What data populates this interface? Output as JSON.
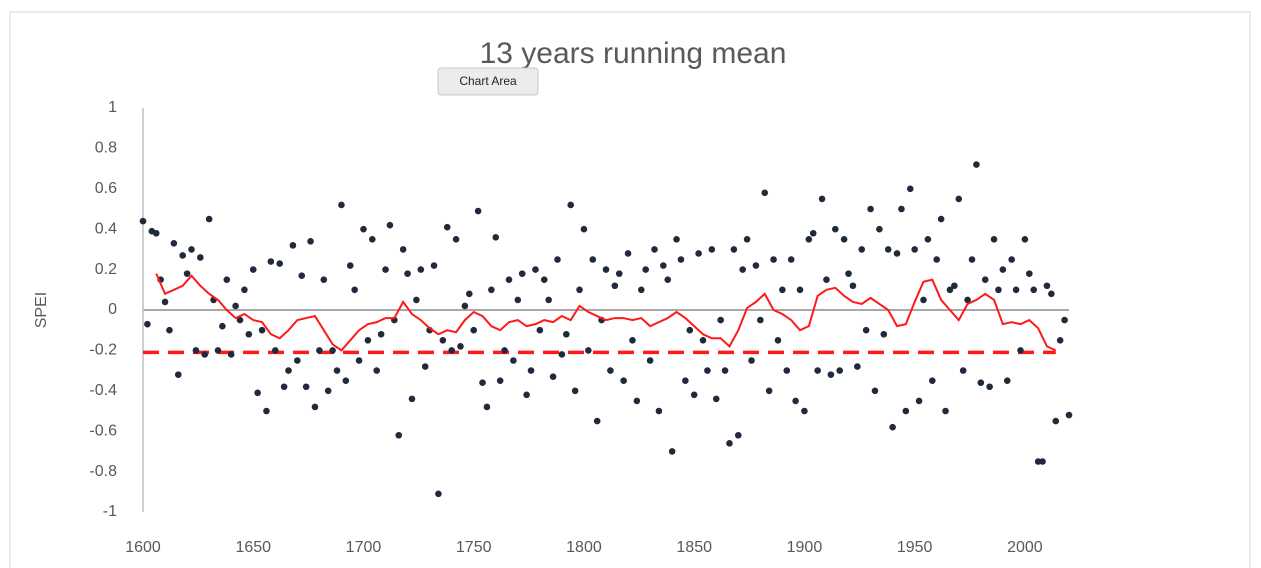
{
  "chart_data": {
    "type": "scatter",
    "title": "13 years running mean",
    "tooltip": "Chart Area",
    "ylabel": "SPEI",
    "xlim": [
      1600,
      2020
    ],
    "ylim": [
      -1,
      1
    ],
    "xticks": [
      1600,
      1650,
      1700,
      1750,
      1800,
      1850,
      1900,
      1950,
      2000
    ],
    "yticks": [
      1,
      0.8,
      0.6,
      0.4,
      0.2,
      0,
      -0.2,
      -0.4,
      -0.6,
      -0.8,
      -1
    ],
    "series": [
      {
        "color": "#1f2a3a",
        "x": [
          1600,
          1602,
          1604,
          1606,
          1608,
          1610,
          1612,
          1614,
          1616,
          1618,
          1620,
          1622,
          1624,
          1626,
          1628,
          1630,
          1632,
          1634,
          1636,
          1638,
          1640,
          1642,
          1644,
          1646,
          1648,
          1650,
          1652,
          1654,
          1656,
          1658,
          1660,
          1662,
          1664,
          1666,
          1668,
          1670,
          1672,
          1674,
          1676,
          1678,
          1680,
          1682,
          1684,
          1686,
          1688,
          1690,
          1692,
          1694,
          1696,
          1698,
          1700,
          1702,
          1704,
          1706,
          1708,
          1710,
          1712,
          1714,
          1716,
          1718,
          1720,
          1722,
          1724,
          1726,
          1728,
          1730,
          1732,
          1734,
          1736,
          1738,
          1740,
          1742,
          1744,
          1746,
          1748,
          1750,
          1752,
          1754,
          1756,
          1758,
          1760,
          1762,
          1764,
          1766,
          1768,
          1770,
          1772,
          1774,
          1776,
          1778,
          1780,
          1782,
          1784,
          1786,
          1788,
          1790,
          1792,
          1794,
          1796,
          1798,
          1800,
          1802,
          1804,
          1806,
          1808,
          1810,
          1812,
          1814,
          1816,
          1818,
          1820,
          1822,
          1824,
          1826,
          1828,
          1830,
          1832,
          1834,
          1836,
          1838,
          1840,
          1842,
          1844,
          1846,
          1848,
          1850,
          1852,
          1854,
          1856,
          1858,
          1860,
          1862,
          1864,
          1866,
          1868,
          1870,
          1872,
          1874,
          1876,
          1878,
          1880,
          1882,
          1884,
          1886,
          1888,
          1890,
          1892,
          1894,
          1896,
          1898,
          1900,
          1902,
          1904,
          1906,
          1908,
          1910,
          1912,
          1914,
          1916,
          1918,
          1920,
          1922,
          1924,
          1926,
          1928,
          1930,
          1932,
          1934,
          1936,
          1938,
          1940,
          1942,
          1944,
          1946,
          1948,
          1950,
          1952,
          1954,
          1956,
          1958,
          1960,
          1962,
          1964,
          1966,
          1968,
          1970,
          1972,
          1974,
          1976,
          1978,
          1980,
          1982,
          1984,
          1986,
          1988,
          1990,
          1992,
          1994,
          1996,
          1998,
          2000,
          2002,
          2004,
          2006,
          2008,
          2010,
          2012,
          2014,
          2016,
          2018,
          2020
        ],
        "values": [
          0.44,
          -0.07,
          0.39,
          0.38,
          0.15,
          0.04,
          -0.1,
          0.33,
          -0.32,
          0.27,
          0.18,
          0.3,
          -0.2,
          0.26,
          -0.22,
          0.45,
          0.05,
          -0.2,
          -0.08,
          0.15,
          -0.22,
          0.02,
          -0.05,
          0.1,
          -0.12,
          0.2,
          -0.41,
          -0.1,
          -0.5,
          0.24,
          -0.2,
          0.23,
          -0.38,
          -0.3,
          0.32,
          -0.25,
          0.17,
          -0.38,
          0.34,
          -0.48,
          -0.2,
          0.15,
          -0.4,
          -0.2,
          -0.3,
          0.52,
          -0.35,
          0.22,
          0.1,
          -0.25,
          0.4,
          -0.15,
          0.35,
          -0.3,
          -0.12,
          0.2,
          0.42,
          -0.05,
          -0.62,
          0.3,
          0.18,
          -0.44,
          0.05,
          0.2,
          -0.28,
          -0.1,
          0.22,
          -0.91,
          -0.15,
          0.41,
          -0.2,
          0.35,
          -0.18,
          0.02,
          0.08,
          -0.1,
          0.49,
          -0.36,
          -0.48,
          0.1,
          0.36,
          -0.35,
          -0.2,
          0.15,
          -0.25,
          0.05,
          0.18,
          -0.42,
          -0.3,
          0.2,
          -0.1,
          0.15,
          0.05,
          -0.33,
          0.25,
          -0.22,
          -0.12,
          0.52,
          -0.4,
          0.1,
          0.4,
          -0.2,
          0.25,
          -0.55,
          -0.05,
          0.2,
          -0.3,
          0.12,
          0.18,
          -0.35,
          0.28,
          -0.15,
          -0.45,
          0.1,
          0.2,
          -0.25,
          0.3,
          -0.5,
          0.22,
          0.15,
          -0.7,
          0.35,
          0.25,
          -0.35,
          -0.1,
          -0.42,
          0.28,
          -0.15,
          -0.3,
          0.3,
          -0.44,
          -0.05,
          -0.3,
          -0.66,
          0.3,
          -0.62,
          0.2,
          0.35,
          -0.25,
          0.22,
          -0.05,
          0.58,
          -0.4,
          0.25,
          -0.15,
          0.1,
          -0.3,
          0.25,
          -0.45,
          0.1,
          -0.5,
          0.35,
          0.38,
          -0.3,
          0.55,
          0.15,
          -0.32,
          0.4,
          -0.3,
          0.35,
          0.18,
          0.12,
          -0.28,
          0.3,
          -0.1,
          0.5,
          -0.4,
          0.4,
          -0.12,
          0.3,
          -0.58,
          0.28,
          0.5,
          -0.5,
          0.6,
          0.3,
          -0.45,
          0.05,
          0.35,
          -0.35,
          0.25,
          0.45,
          -0.5,
          0.1,
          0.12,
          0.55,
          -0.3,
          0.05,
          0.25,
          0.72,
          -0.36,
          0.15,
          -0.38,
          0.35,
          0.1,
          0.2,
          -0.35,
          0.25,
          0.1,
          -0.2,
          0.35,
          0.18,
          0.1,
          -0.75,
          -0.75,
          0.12,
          0.08,
          -0.55,
          -0.15,
          -0.05,
          -0.52
        ]
      },
      {
        "type": "line",
        "color": "#ff1a1a",
        "x": [
          1606,
          1610,
          1614,
          1618,
          1622,
          1626,
          1630,
          1634,
          1638,
          1642,
          1646,
          1650,
          1654,
          1658,
          1662,
          1666,
          1670,
          1674,
          1678,
          1682,
          1686,
          1690,
          1694,
          1698,
          1702,
          1706,
          1710,
          1714,
          1718,
          1722,
          1726,
          1730,
          1734,
          1738,
          1742,
          1746,
          1750,
          1754,
          1758,
          1762,
          1766,
          1770,
          1774,
          1778,
          1782,
          1786,
          1790,
          1794,
          1798,
          1802,
          1806,
          1810,
          1814,
          1818,
          1822,
          1826,
          1830,
          1834,
          1838,
          1842,
          1846,
          1850,
          1854,
          1858,
          1862,
          1866,
          1870,
          1874,
          1878,
          1882,
          1886,
          1890,
          1894,
          1898,
          1902,
          1906,
          1910,
          1914,
          1918,
          1922,
          1926,
          1930,
          1934,
          1938,
          1942,
          1946,
          1950,
          1954,
          1958,
          1962,
          1966,
          1970,
          1974,
          1978,
          1982,
          1986,
          1990,
          1994,
          1998,
          2002,
          2006,
          2010,
          2014
        ],
        "values": [
          0.18,
          0.08,
          0.1,
          0.12,
          0.17,
          0.12,
          0.08,
          0.05,
          0.0,
          -0.04,
          -0.02,
          -0.05,
          -0.06,
          -0.12,
          -0.14,
          -0.1,
          -0.05,
          -0.04,
          -0.03,
          -0.1,
          -0.17,
          -0.2,
          -0.15,
          -0.1,
          -0.07,
          -0.06,
          -0.04,
          -0.04,
          0.04,
          -0.02,
          -0.05,
          -0.09,
          -0.12,
          -0.1,
          -0.11,
          -0.05,
          -0.01,
          -0.03,
          -0.08,
          -0.1,
          -0.06,
          -0.05,
          -0.08,
          -0.07,
          -0.05,
          -0.06,
          -0.03,
          -0.05,
          0.02,
          -0.01,
          -0.03,
          -0.05,
          -0.04,
          -0.04,
          -0.05,
          -0.04,
          -0.08,
          -0.06,
          -0.04,
          -0.01,
          -0.04,
          -0.08,
          -0.12,
          -0.14,
          -0.14,
          -0.18,
          -0.1,
          0.01,
          0.04,
          0.08,
          0.0,
          -0.02,
          -0.05,
          -0.1,
          -0.08,
          0.07,
          0.1,
          0.11,
          0.07,
          0.04,
          0.03,
          0.06,
          0.03,
          0.0,
          -0.08,
          -0.07,
          0.04,
          0.14,
          0.15,
          0.05,
          0.0,
          -0.05,
          0.03,
          0.05,
          0.08,
          0.05,
          -0.07,
          -0.06,
          -0.07,
          -0.05,
          -0.09,
          -0.18,
          -0.2
        ]
      }
    ],
    "threshold": {
      "value": -0.21,
      "color": "#ff1a1a"
    }
  }
}
